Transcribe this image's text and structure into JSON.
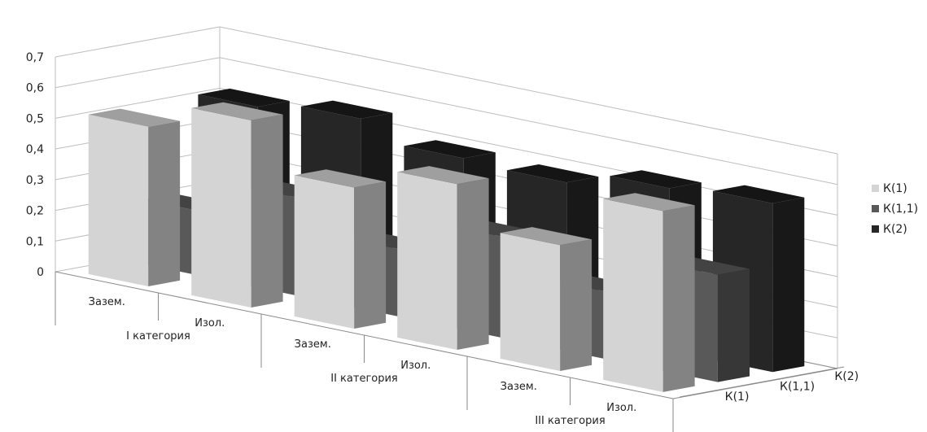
{
  "chart_data": {
    "type": "bar",
    "variant": "3d-column",
    "categories": [
      "Зазем.",
      "Изол.",
      "Зазем.",
      "Изол.",
      "Зазем.",
      "Изол."
    ],
    "groups": [
      "I категория",
      "II категория",
      "III категория"
    ],
    "series": [
      {
        "name": "К(1)",
        "values": [
          0.52,
          0.61,
          0.46,
          0.54,
          0.41,
          0.59
        ],
        "color": "#d4d4d4"
      },
      {
        "name": "К(1,1)",
        "values": [
          0.21,
          0.32,
          0.22,
          0.33,
          0.22,
          0.35
        ],
        "color": "#595959"
      },
      {
        "name": "К(2)",
        "values": [
          0.52,
          0.55,
          0.49,
          0.48,
          0.53,
          0.55
        ],
        "color": "#262626"
      }
    ],
    "ylim": [
      0,
      0.7
    ],
    "yticks": [
      "0",
      "0,1",
      "0,2",
      "0,3",
      "0,4",
      "0,5",
      "0,6",
      "0,7"
    ],
    "grid": true,
    "legend": "right"
  }
}
